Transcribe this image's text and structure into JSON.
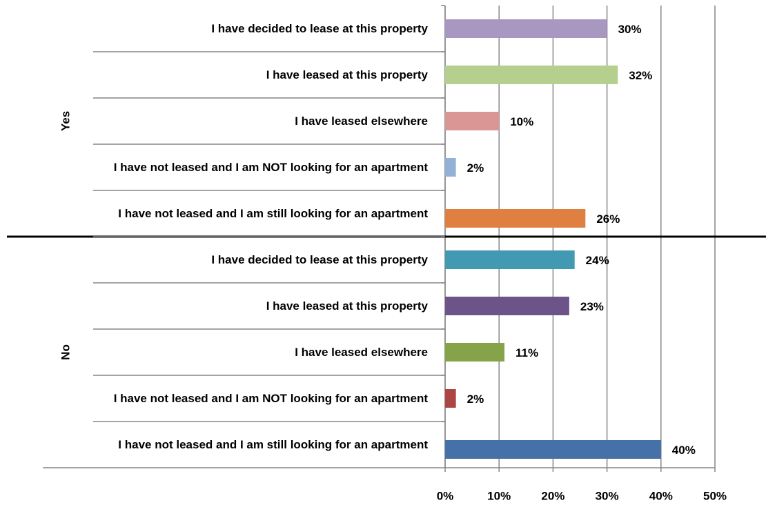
{
  "chart_data": {
    "type": "bar",
    "orientation": "horizontal",
    "groups": [
      {
        "name": "Yes",
        "categories": [
          "I have decided to lease at this property",
          "I have leased at this property",
          "I have leased elsewhere",
          "I have not leased and I am NOT looking for an apartment",
          "I have not leased and I am still looking for an apartment"
        ],
        "values": [
          30,
          32,
          10,
          2,
          26
        ],
        "value_labels": [
          "30%",
          "32%",
          "10%",
          "2%",
          "26%"
        ],
        "colors": [
          "#a797c1",
          "#b5cf8f",
          "#d99694",
          "#93b1d6",
          "#df8040"
        ]
      },
      {
        "name": "No",
        "categories": [
          "I have decided to lease at this property",
          "I have leased at this property",
          "I have leased elsewhere",
          "I have not leased and I am NOT looking for an apartment",
          "I have not leased and I am still looking for an apartment"
        ],
        "values": [
          24,
          23,
          11,
          2,
          40
        ],
        "value_labels": [
          "24%",
          "23%",
          "11%",
          "2%",
          "40%"
        ],
        "colors": [
          "#4299b2",
          "#6c5489",
          "#86a34a",
          "#ac4544",
          "#4671a8"
        ]
      }
    ],
    "xlim": [
      0,
      50
    ],
    "xticks": [
      {
        "value": 0,
        "label": "0%"
      },
      {
        "value": 10,
        "label": "10%"
      },
      {
        "value": 20,
        "label": "20%"
      },
      {
        "value": 30,
        "label": "30%"
      },
      {
        "value": 40,
        "label": "40%"
      },
      {
        "value": 50,
        "label": "50%"
      }
    ],
    "grid": true
  }
}
